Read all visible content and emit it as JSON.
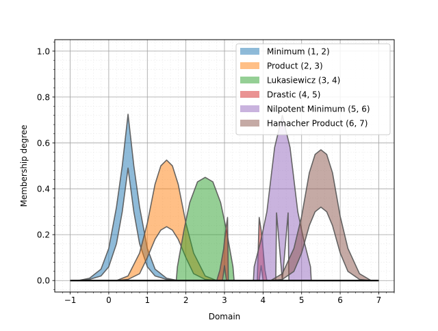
{
  "chart_data": {
    "type": "area",
    "xlabel": "Domain",
    "ylabel": "Membership degree",
    "xlim": [
      -1.4,
      7.4
    ],
    "ylim": [
      -0.05,
      1.05
    ],
    "xticks": [
      -1,
      0,
      1,
      2,
      3,
      4,
      5,
      6,
      7
    ],
    "yticks": [
      0.0,
      0.2,
      0.4,
      0.6,
      0.8,
      1.0
    ],
    "xtick_labels": [
      "−1",
      "0",
      "1",
      "2",
      "3",
      "4",
      "5",
      "6",
      "7"
    ],
    "ytick_labels": [
      "0.0",
      "0.2",
      "0.4",
      "0.6",
      "0.8",
      "1.0"
    ],
    "grid": true,
    "minor_grid": true,
    "legend_position": "top-right",
    "baseline": {
      "from": -1,
      "to": 7
    },
    "series": [
      {
        "name": "Minimum (1, 2)",
        "color": "#1f77b4",
        "lower": [
          [
            -0.8,
            0.0
          ],
          [
            -0.5,
            0.005
          ],
          [
            -0.2,
            0.02
          ],
          [
            0.0,
            0.06
          ],
          [
            0.2,
            0.16
          ],
          [
            0.35,
            0.3
          ],
          [
            0.5,
            0.49
          ],
          [
            0.65,
            0.3
          ],
          [
            0.8,
            0.16
          ],
          [
            1.0,
            0.06
          ],
          [
            1.2,
            0.02
          ],
          [
            1.5,
            0.005
          ],
          [
            1.8,
            0.0
          ]
        ],
        "upper": [
          [
            -0.8,
            0.0
          ],
          [
            -0.5,
            0.01
          ],
          [
            -0.2,
            0.05
          ],
          [
            0.0,
            0.14
          ],
          [
            0.2,
            0.32
          ],
          [
            0.35,
            0.5
          ],
          [
            0.5,
            0.725
          ],
          [
            0.65,
            0.5
          ],
          [
            0.8,
            0.32
          ],
          [
            1.0,
            0.14
          ],
          [
            1.2,
            0.05
          ],
          [
            1.5,
            0.01
          ],
          [
            1.8,
            0.0
          ]
        ]
      },
      {
        "name": "Product (2, 3)",
        "color": "#ff7f0e",
        "lower": [
          [
            0.2,
            0.0
          ],
          [
            0.5,
            0.005
          ],
          [
            0.8,
            0.03
          ],
          [
            1.0,
            0.1
          ],
          [
            1.2,
            0.18
          ],
          [
            1.35,
            0.22
          ],
          [
            1.5,
            0.235
          ],
          [
            1.65,
            0.22
          ],
          [
            1.8,
            0.18
          ],
          [
            2.0,
            0.1
          ],
          [
            2.2,
            0.03
          ],
          [
            2.5,
            0.005
          ],
          [
            2.8,
            0.0
          ]
        ],
        "upper": [
          [
            0.2,
            0.0
          ],
          [
            0.5,
            0.02
          ],
          [
            0.8,
            0.12
          ],
          [
            1.0,
            0.25
          ],
          [
            1.2,
            0.42
          ],
          [
            1.35,
            0.5
          ],
          [
            1.5,
            0.525
          ],
          [
            1.65,
            0.5
          ],
          [
            1.8,
            0.42
          ],
          [
            2.0,
            0.25
          ],
          [
            2.2,
            0.12
          ],
          [
            2.5,
            0.02
          ],
          [
            2.8,
            0.0
          ]
        ]
      },
      {
        "name": "Lukasiewicz (3, 4)",
        "color": "#2ca02c",
        "lower": [
          [
            1.75,
            0.0
          ],
          [
            2.0,
            0.0
          ],
          [
            2.35,
            0.0
          ],
          [
            2.5,
            0.0
          ],
          [
            2.65,
            0.0
          ],
          [
            3.0,
            0.0
          ],
          [
            3.25,
            0.0
          ]
        ],
        "upper": [
          [
            1.75,
            0.0
          ],
          [
            1.78,
            0.06
          ],
          [
            1.95,
            0.22
          ],
          [
            2.1,
            0.34
          ],
          [
            2.3,
            0.43
          ],
          [
            2.5,
            0.45
          ],
          [
            2.7,
            0.43
          ],
          [
            2.9,
            0.34
          ],
          [
            3.05,
            0.22
          ],
          [
            3.22,
            0.06
          ],
          [
            3.25,
            0.0
          ]
        ]
      },
      {
        "name": "Drastic (4, 5)",
        "color": "#d62728",
        "lower": [
          [
            2.8,
            0.0
          ],
          [
            2.95,
            0.0
          ],
          [
            3.0,
            0.065
          ],
          [
            3.05,
            0.0
          ],
          [
            3.1,
            0.0
          ],
          [
            3.85,
            0.0
          ],
          [
            3.9,
            0.0
          ],
          [
            3.95,
            0.065
          ],
          [
            4.0,
            0.0
          ],
          [
            4.1,
            0.0
          ]
        ],
        "upper": [
          [
            2.8,
            0.0
          ],
          [
            2.88,
            0.045
          ],
          [
            2.98,
            0.14
          ],
          [
            3.0,
            0.175
          ],
          [
            3.05,
            0.24
          ],
          [
            3.08,
            0.275
          ],
          [
            3.1,
            0.0
          ],
          [
            3.85,
            0.0
          ],
          [
            3.9,
            0.275
          ],
          [
            3.95,
            0.22
          ],
          [
            4.0,
            0.14
          ],
          [
            4.05,
            0.045
          ],
          [
            4.1,
            0.0
          ]
        ]
      },
      {
        "name": "Nilpotent Minimum (5, 6)",
        "color": "#9467bd",
        "lower": [
          [
            3.75,
            0.0
          ],
          [
            4.0,
            0.0
          ],
          [
            4.33,
            0.0
          ],
          [
            4.35,
            0.295
          ],
          [
            4.5,
            0.0
          ],
          [
            4.65,
            0.295
          ],
          [
            4.67,
            0.0
          ],
          [
            5.0,
            0.0
          ],
          [
            5.25,
            0.0
          ]
        ],
        "upper": [
          [
            3.75,
            0.0
          ],
          [
            3.77,
            0.06
          ],
          [
            3.95,
            0.18
          ],
          [
            4.1,
            0.3
          ],
          [
            4.3,
            0.58
          ],
          [
            4.5,
            0.72
          ],
          [
            4.7,
            0.58
          ],
          [
            4.9,
            0.3
          ],
          [
            5.05,
            0.18
          ],
          [
            5.23,
            0.06
          ],
          [
            5.25,
            0.0
          ]
        ]
      },
      {
        "name": "Hamacher Product (6, 7)",
        "color": "#8c564b",
        "lower": [
          [
            4.2,
            0.0
          ],
          [
            4.5,
            0.005
          ],
          [
            4.8,
            0.04
          ],
          [
            5.0,
            0.12
          ],
          [
            5.2,
            0.24
          ],
          [
            5.35,
            0.3
          ],
          [
            5.5,
            0.32
          ],
          [
            5.65,
            0.3
          ],
          [
            5.8,
            0.24
          ],
          [
            6.0,
            0.12
          ],
          [
            6.2,
            0.04
          ],
          [
            6.5,
            0.005
          ],
          [
            6.8,
            0.0
          ]
        ],
        "upper": [
          [
            4.2,
            0.0
          ],
          [
            4.5,
            0.03
          ],
          [
            4.8,
            0.14
          ],
          [
            5.0,
            0.28
          ],
          [
            5.2,
            0.47
          ],
          [
            5.35,
            0.55
          ],
          [
            5.5,
            0.57
          ],
          [
            5.65,
            0.55
          ],
          [
            5.8,
            0.47
          ],
          [
            6.0,
            0.28
          ],
          [
            6.2,
            0.14
          ],
          [
            6.5,
            0.03
          ],
          [
            6.8,
            0.0
          ]
        ]
      }
    ]
  }
}
